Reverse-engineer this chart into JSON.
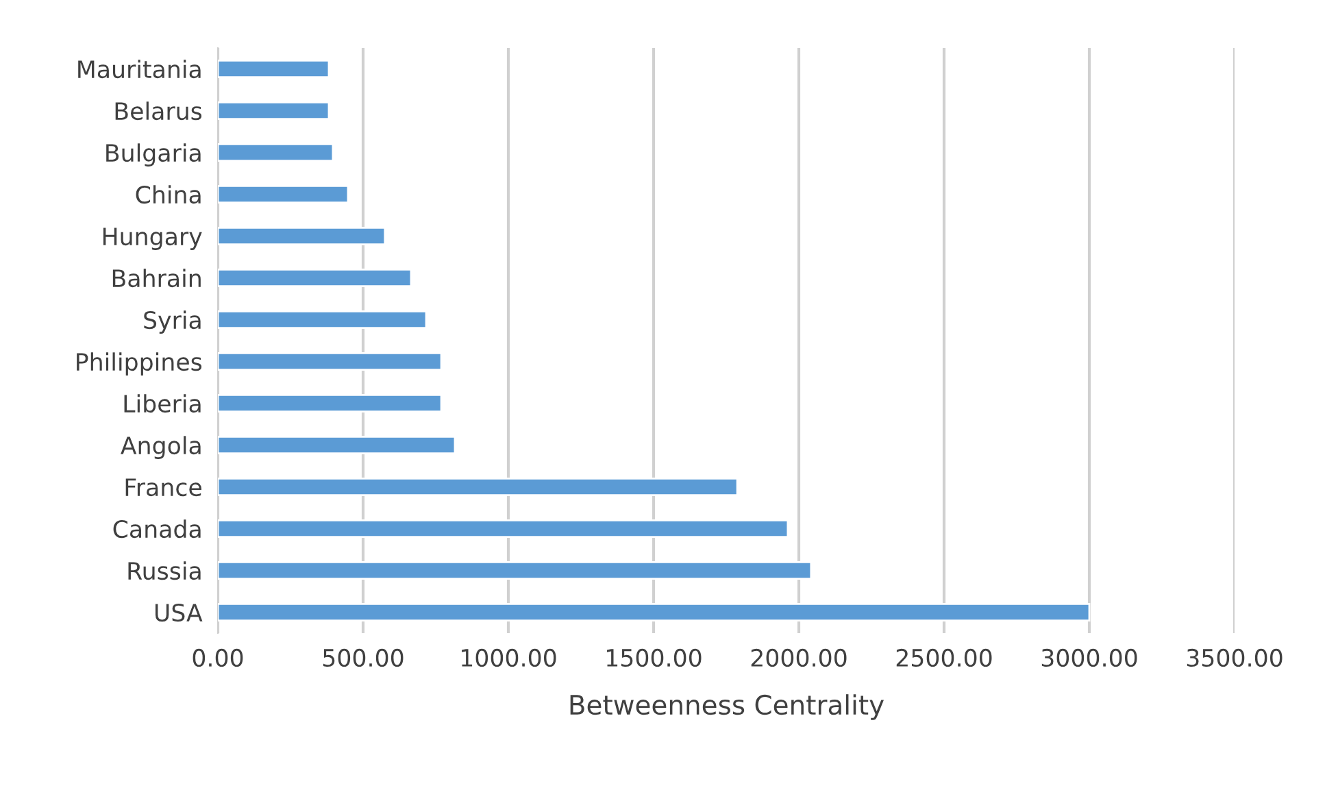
{
  "chart_data": {
    "type": "bar",
    "orientation": "horizontal",
    "xlabel": "Betweenness Centrality",
    "categories": [
      "Mauritania",
      "Belarus",
      "Bulgaria",
      "China",
      "Hungary",
      "Bahrain",
      "Syria",
      "Philippines",
      "Liberia",
      "Angola",
      "France",
      "Canada",
      "Russia",
      "USA"
    ],
    "values": [
      382,
      382,
      396,
      448,
      575,
      665,
      717,
      769,
      769,
      816,
      1788,
      1962,
      2042,
      3000
    ],
    "color": "#5b9bd5",
    "xlim": [
      0,
      3500
    ],
    "xticks": [
      {
        "value": 0,
        "label": "0.00"
      },
      {
        "value": 500,
        "label": "500.00"
      },
      {
        "value": 1000,
        "label": "1000.00"
      },
      {
        "value": 1500,
        "label": "1500.00"
      },
      {
        "value": 2000,
        "label": "2000.00"
      },
      {
        "value": 2500,
        "label": "2500.00"
      },
      {
        "value": 3000,
        "label": "3000.00"
      },
      {
        "value": 3500,
        "label": "3500.00"
      }
    ],
    "grid": "x",
    "legend": false
  }
}
